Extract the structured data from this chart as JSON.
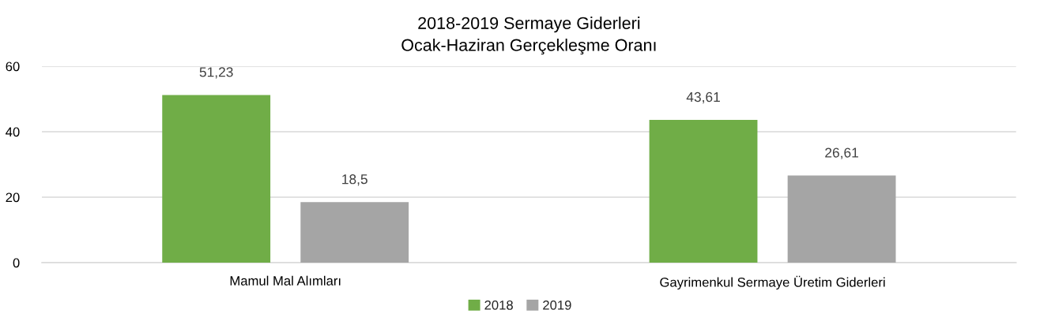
{
  "chart_data": {
    "type": "bar",
    "title": "2018-2019 Sermaye Giderleri\nOcak-Haziran Gerçekleşme Oranı",
    "categories": [
      "Mamul Mal Alımları",
      "Gayrimenkul Sermaye Üretim Giderleri"
    ],
    "series": [
      {
        "name": "2018",
        "color": "#70ad47",
        "values": [
          51.23,
          43.61
        ],
        "value_labels": [
          "51,23",
          "43,61"
        ]
      },
      {
        "name": "2019",
        "color": "#a5a5a5",
        "values": [
          18.5,
          26.61
        ],
        "value_labels": [
          "18,5",
          "26,61"
        ]
      }
    ],
    "ylim": [
      0,
      60
    ],
    "yticks": [
      0,
      20,
      40,
      60
    ],
    "grid": "y",
    "legend": "bottom"
  }
}
